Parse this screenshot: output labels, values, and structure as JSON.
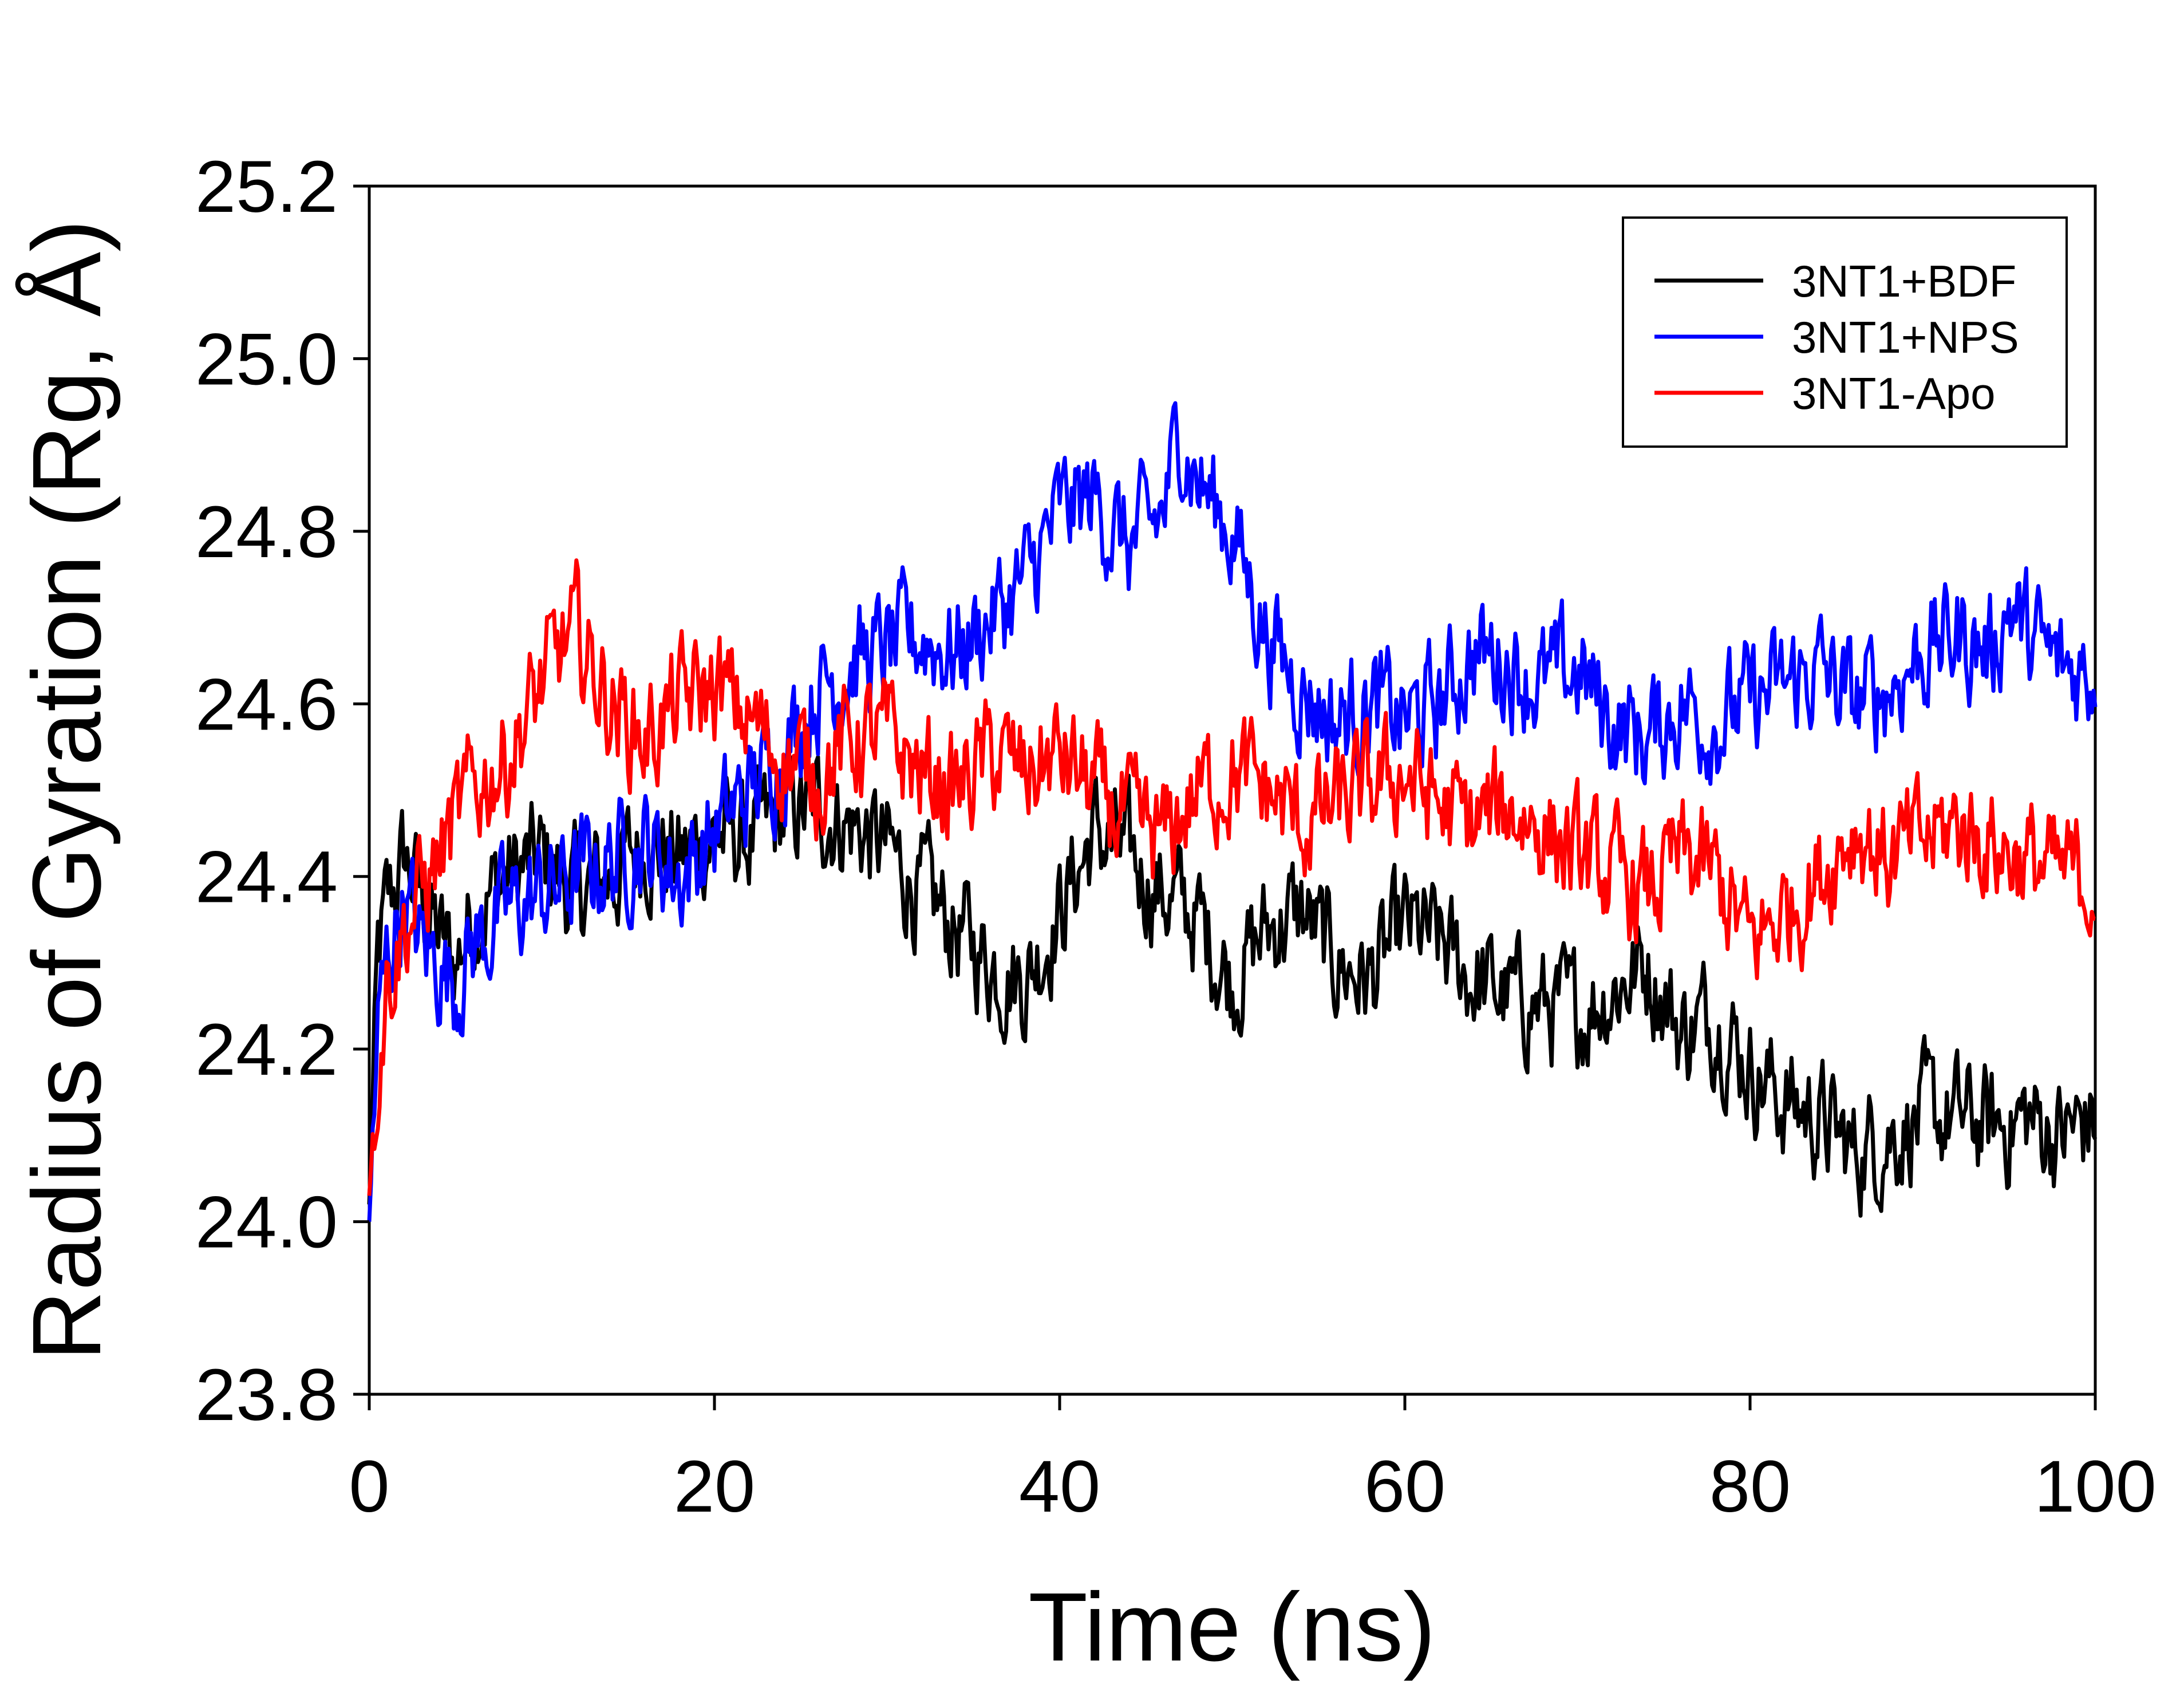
{
  "chart_data": {
    "type": "line",
    "title": "",
    "xlabel": "Time (ns)",
    "ylabel": "Radius of Gyration (Rg, Å)",
    "xlim": [
      0,
      100
    ],
    "ylim": [
      23.8,
      25.2
    ],
    "x_ticks": [
      0,
      20,
      40,
      60,
      80,
      100
    ],
    "y_ticks": [
      23.8,
      24.0,
      24.2,
      24.4,
      24.6,
      24.8,
      25.0,
      25.2
    ],
    "x_tick_labels": [
      "0",
      "20",
      "40",
      "60",
      "80",
      "100"
    ],
    "y_tick_labels": [
      "23.8",
      "24.0",
      "24.2",
      "24.4",
      "24.6",
      "24.8",
      "25.0",
      "25.2"
    ],
    "grid": false,
    "legend_position": "top-right",
    "series": [
      {
        "name": "3NT1+BDF",
        "color": "#000000",
        "x": [
          0,
          0.5,
          1,
          2,
          3,
          4,
          5,
          6,
          8,
          10,
          12,
          14,
          16,
          18,
          20,
          22,
          24,
          26,
          28,
          30,
          32,
          34,
          36,
          38,
          40,
          42,
          44,
          46,
          48,
          50,
          52,
          54,
          56,
          58,
          60,
          62,
          64,
          66,
          68,
          70,
          72,
          74,
          76,
          78,
          80,
          82,
          84,
          86,
          88,
          90,
          92,
          94,
          96,
          98,
          100
        ],
        "y": [
          24.02,
          24.3,
          24.36,
          24.42,
          24.38,
          24.33,
          24.3,
          24.36,
          24.4,
          24.42,
          24.38,
          24.4,
          24.44,
          24.42,
          24.45,
          24.44,
          24.47,
          24.48,
          24.46,
          24.43,
          24.38,
          24.34,
          24.3,
          24.28,
          24.36,
          24.45,
          24.42,
          24.38,
          24.35,
          24.28,
          24.34,
          24.36,
          24.3,
          24.28,
          24.34,
          24.32,
          24.28,
          24.26,
          24.25,
          24.24,
          24.27,
          24.3,
          24.22,
          24.24,
          24.18,
          24.14,
          24.12,
          24.08,
          24.1,
          24.12,
          24.12,
          24.11,
          24.12,
          24.1,
          24.12
        ]
      },
      {
        "name": "3NT1+NPS",
        "color": "#0000ff",
        "x": [
          0,
          0.5,
          1,
          2,
          3,
          4,
          5,
          6,
          8,
          10,
          12,
          14,
          16,
          18,
          20,
          22,
          24,
          26,
          28,
          30,
          32,
          34,
          36,
          38,
          40,
          42,
          44,
          46,
          47,
          48,
          50,
          52,
          54,
          56,
          58,
          60,
          62,
          64,
          66,
          68,
          70,
          72,
          74,
          76,
          78,
          80,
          82,
          84,
          86,
          88,
          90,
          92,
          94,
          95,
          96,
          98,
          100
        ],
        "y": [
          24.0,
          24.22,
          24.3,
          24.38,
          24.32,
          24.3,
          24.28,
          24.32,
          24.36,
          24.38,
          24.4,
          24.42,
          24.44,
          24.4,
          24.45,
          24.5,
          24.55,
          24.62,
          24.65,
          24.66,
          24.68,
          24.66,
          24.7,
          24.74,
          24.82,
          24.84,
          24.78,
          24.82,
          24.92,
          24.86,
          24.8,
          24.68,
          24.62,
          24.58,
          24.6,
          24.58,
          24.6,
          24.66,
          24.65,
          24.62,
          24.64,
          24.58,
          24.56,
          24.6,
          24.58,
          24.6,
          24.62,
          24.64,
          24.6,
          24.62,
          24.66,
          24.68,
          24.66,
          24.72,
          24.68,
          24.64,
          24.64
        ]
      },
      {
        "name": "3NT1-Apo",
        "color": "#ff0000",
        "x": [
          0,
          0.5,
          1,
          2,
          3,
          4,
          5,
          6,
          8,
          10,
          11,
          12,
          14,
          16,
          18,
          20,
          22,
          24,
          26,
          28,
          30,
          32,
          34,
          36,
          38,
          40,
          42,
          44,
          46,
          48,
          50,
          52,
          54,
          56,
          58,
          60,
          62,
          64,
          66,
          68,
          70,
          72,
          74,
          76,
          78,
          80,
          82,
          84,
          86,
          88,
          90,
          92,
          94,
          96,
          98,
          100
        ],
        "y": [
          24.03,
          24.18,
          24.28,
          24.34,
          24.38,
          24.42,
          24.46,
          24.5,
          24.54,
          24.62,
          24.66,
          24.68,
          24.6,
          24.56,
          24.6,
          24.62,
          24.58,
          24.54,
          24.52,
          24.56,
          24.56,
          24.52,
          24.5,
          24.54,
          24.52,
          24.54,
          24.5,
          24.46,
          24.44,
          24.5,
          24.52,
          24.5,
          24.46,
          24.48,
          24.5,
          24.52,
          24.48,
          24.46,
          24.48,
          24.46,
          24.42,
          24.4,
          24.38,
          24.42,
          24.4,
          24.32,
          24.36,
          24.4,
          24.46,
          24.42,
          24.44,
          24.46,
          24.44,
          24.42,
          24.4,
          24.4
        ]
      }
    ]
  }
}
